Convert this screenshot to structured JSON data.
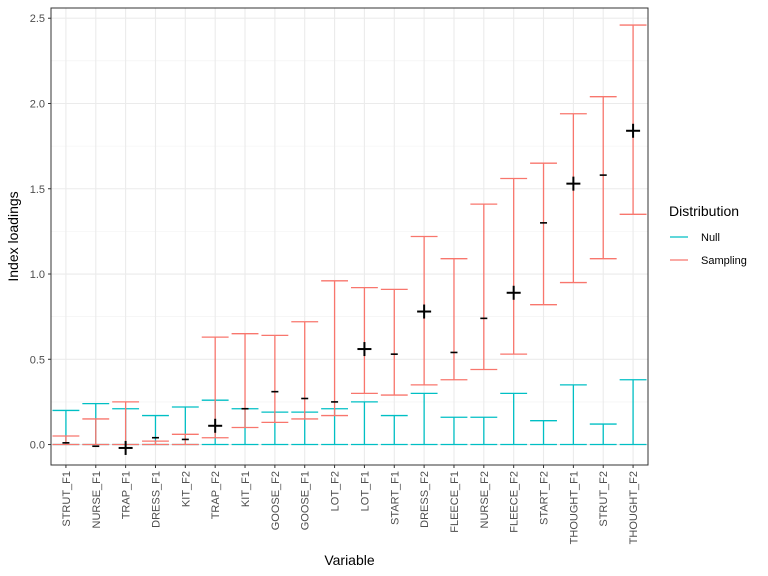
{
  "chart_data": {
    "type": "errorbar",
    "xlabel": "Variable",
    "ylabel": "Index loadings",
    "ylim": [
      -0.12,
      2.56
    ],
    "yticks": [
      0.0,
      0.5,
      1.0,
      1.5,
      2.0,
      2.5
    ],
    "ytick_labels": [
      "0.0",
      "0.5",
      "1.0",
      "1.5",
      "2.0",
      "2.5"
    ],
    "grid": true,
    "categories": [
      "STRUT_F1",
      "NURSE_F1",
      "TRAP_F1",
      "DRESS_F1",
      "KIT_F2",
      "TRAP_F2",
      "KIT_F1",
      "GOOSE_F2",
      "GOOSE_F1",
      "LOT_F2",
      "LOT_F1",
      "START_F1",
      "DRESS_F2",
      "FLEECE_F1",
      "NURSE_F2",
      "FLEECE_F2",
      "START_F2",
      "THOUGHT_F1",
      "STRUT_F2",
      "THOUGHT_F2"
    ],
    "series": [
      {
        "name": "Null",
        "color": "#00BFC4",
        "lower": [
          0,
          0,
          0,
          0,
          0,
          0,
          0,
          0,
          0,
          0,
          0,
          0,
          0,
          0,
          0,
          0,
          0,
          0,
          0,
          0
        ],
        "upper": [
          0.2,
          0.24,
          0.21,
          0.17,
          0.22,
          0.26,
          0.21,
          0.19,
          0.19,
          0.21,
          0.25,
          0.17,
          0.3,
          0.16,
          0.16,
          0.3,
          0.14,
          0.35,
          0.12,
          0.38
        ]
      },
      {
        "name": "Sampling",
        "color": "#F8766D",
        "lower": [
          0.0,
          0.0,
          0.0,
          0.0,
          0.0,
          0.04,
          0.1,
          0.13,
          0.15,
          0.17,
          0.3,
          0.29,
          0.35,
          0.38,
          0.44,
          0.53,
          0.82,
          0.95,
          1.09,
          1.35
        ],
        "upper": [
          0.05,
          0.15,
          0.25,
          0.02,
          0.06,
          0.63,
          0.65,
          0.64,
          0.72,
          0.96,
          0.92,
          0.91,
          1.22,
          1.09,
          1.41,
          1.56,
          1.65,
          1.94,
          2.04,
          2.46
        ]
      }
    ],
    "points": {
      "name": "Observed",
      "color": "#000000",
      "values": [
        0.01,
        -0.01,
        -0.02,
        0.04,
        0.03,
        0.11,
        0.21,
        0.31,
        0.27,
        0.25,
        0.56,
        0.53,
        0.78,
        0.54,
        0.74,
        0.89,
        1.3,
        1.53,
        1.58,
        1.84
      ],
      "significant": [
        false,
        false,
        true,
        false,
        false,
        true,
        false,
        false,
        false,
        false,
        true,
        false,
        true,
        false,
        false,
        true,
        false,
        true,
        false,
        true
      ]
    },
    "legend": {
      "title": "Distribution",
      "position": "right",
      "entries": [
        "Null",
        "Sampling"
      ]
    }
  }
}
